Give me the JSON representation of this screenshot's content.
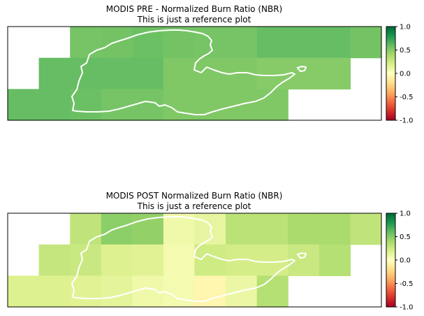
{
  "colors": {
    "colormap": "RdYlGn",
    "fire_outline": "#ffffff",
    "axes_frame": "#000000"
  },
  "chart_data": [
    {
      "type": "heatmap",
      "title": "MODIS PRE - Normalized Burn Ratio (NBR)",
      "subtitle": "This is just a reference plot",
      "colorbar": {
        "min": -1.0,
        "max": 1.0,
        "ticks": [
          "1.0",
          "0.5",
          "0.0",
          "-0.5",
          "-1.0"
        ],
        "tick_values": [
          1.0,
          0.5,
          0.0,
          -0.5,
          -1.0
        ]
      },
      "grid": false,
      "rows": 3,
      "cols": 12,
      "values": [
        [
          null,
          null,
          0.55,
          0.56,
          0.58,
          0.56,
          0.55,
          0.55,
          0.6,
          0.6,
          0.6,
          0.56
        ],
        [
          null,
          0.6,
          0.6,
          0.6,
          0.6,
          0.52,
          0.52,
          0.52,
          0.5,
          0.5,
          0.5,
          null
        ],
        [
          0.6,
          0.6,
          0.58,
          0.55,
          0.55,
          0.52,
          0.52,
          0.52,
          0.52,
          null,
          null,
          null
        ]
      ]
    },
    {
      "type": "heatmap",
      "title": "MODIS POST Normalized Burn Ratio (NBR)",
      "subtitle": "This is just a reference plot",
      "colorbar": {
        "min": -1.0,
        "max": 1.0,
        "ticks": [
          "1.0",
          "0.5",
          "0.0",
          "-0.5",
          "-1.0"
        ],
        "tick_values": [
          1.0,
          0.5,
          0.0,
          -0.5,
          -1.0
        ]
      },
      "grid": false,
      "rows": 3,
      "cols": 12,
      "values": [
        [
          null,
          null,
          0.3,
          0.48,
          0.46,
          0.08,
          0.12,
          0.32,
          0.32,
          0.38,
          0.38,
          0.3
        ],
        [
          null,
          0.28,
          0.26,
          0.18,
          0.16,
          0.06,
          0.24,
          0.22,
          0.22,
          0.26,
          0.34,
          null
        ],
        [
          0.18,
          0.18,
          0.16,
          0.14,
          0.08,
          0.06,
          -0.06,
          0.1,
          0.34,
          null,
          null,
          null
        ]
      ]
    }
  ]
}
